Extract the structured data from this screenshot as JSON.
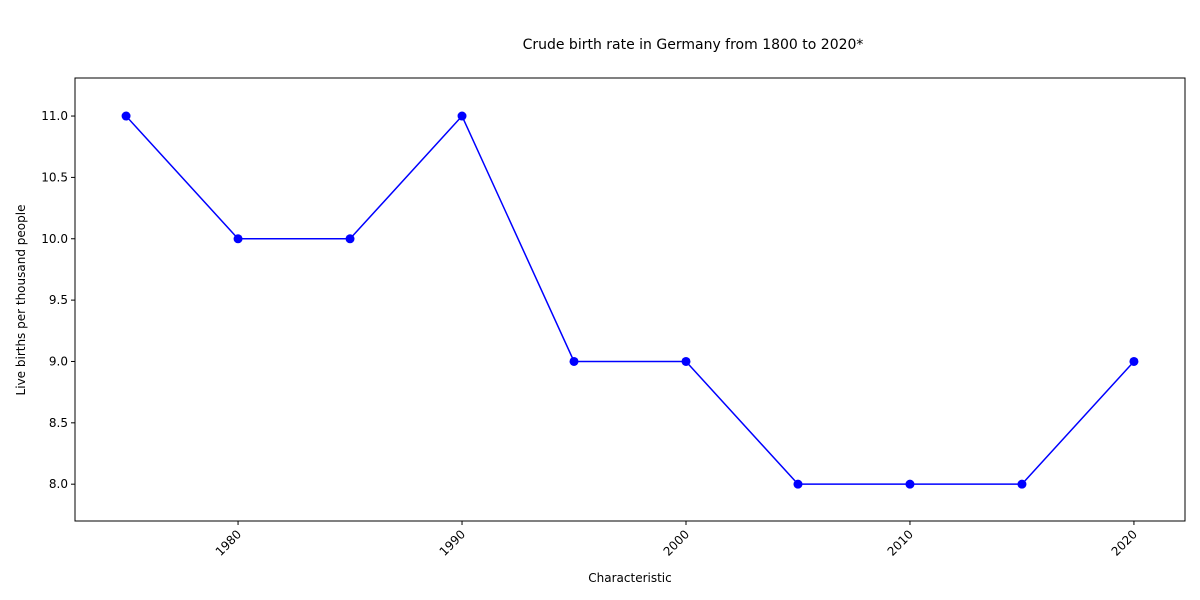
{
  "chart_data": {
    "type": "line",
    "title": "Crude birth rate in Germany from 1800 to 2020*",
    "xlabel": "Characteristic",
    "ylabel": "Live births per thousand people",
    "x": [
      1975,
      1980,
      1985,
      1990,
      1995,
      2000,
      2005,
      2010,
      2015,
      2020
    ],
    "series": [
      {
        "name": "Live births per thousand people",
        "color": "#0000ff",
        "values": [
          11,
          10,
          10,
          11,
          9,
          9,
          8,
          8,
          8,
          9
        ]
      }
    ],
    "xlim": [
      1972.72,
      2022.28
    ],
    "xticks": [
      1980,
      1990,
      2000,
      2010,
      2020
    ],
    "ylim": [
      7.7,
      11.31
    ],
    "yticks": [
      {
        "value": 8,
        "label": "8.0"
      },
      {
        "value": 8.5,
        "label": "8.5"
      },
      {
        "value": 9,
        "label": "9.0"
      },
      {
        "value": 9.5,
        "label": "9.5"
      },
      {
        "value": 10,
        "label": "10.0"
      },
      {
        "value": 10.5,
        "label": "10.5"
      },
      {
        "value": 11,
        "label": "11.0"
      }
    ],
    "grid": false
  }
}
